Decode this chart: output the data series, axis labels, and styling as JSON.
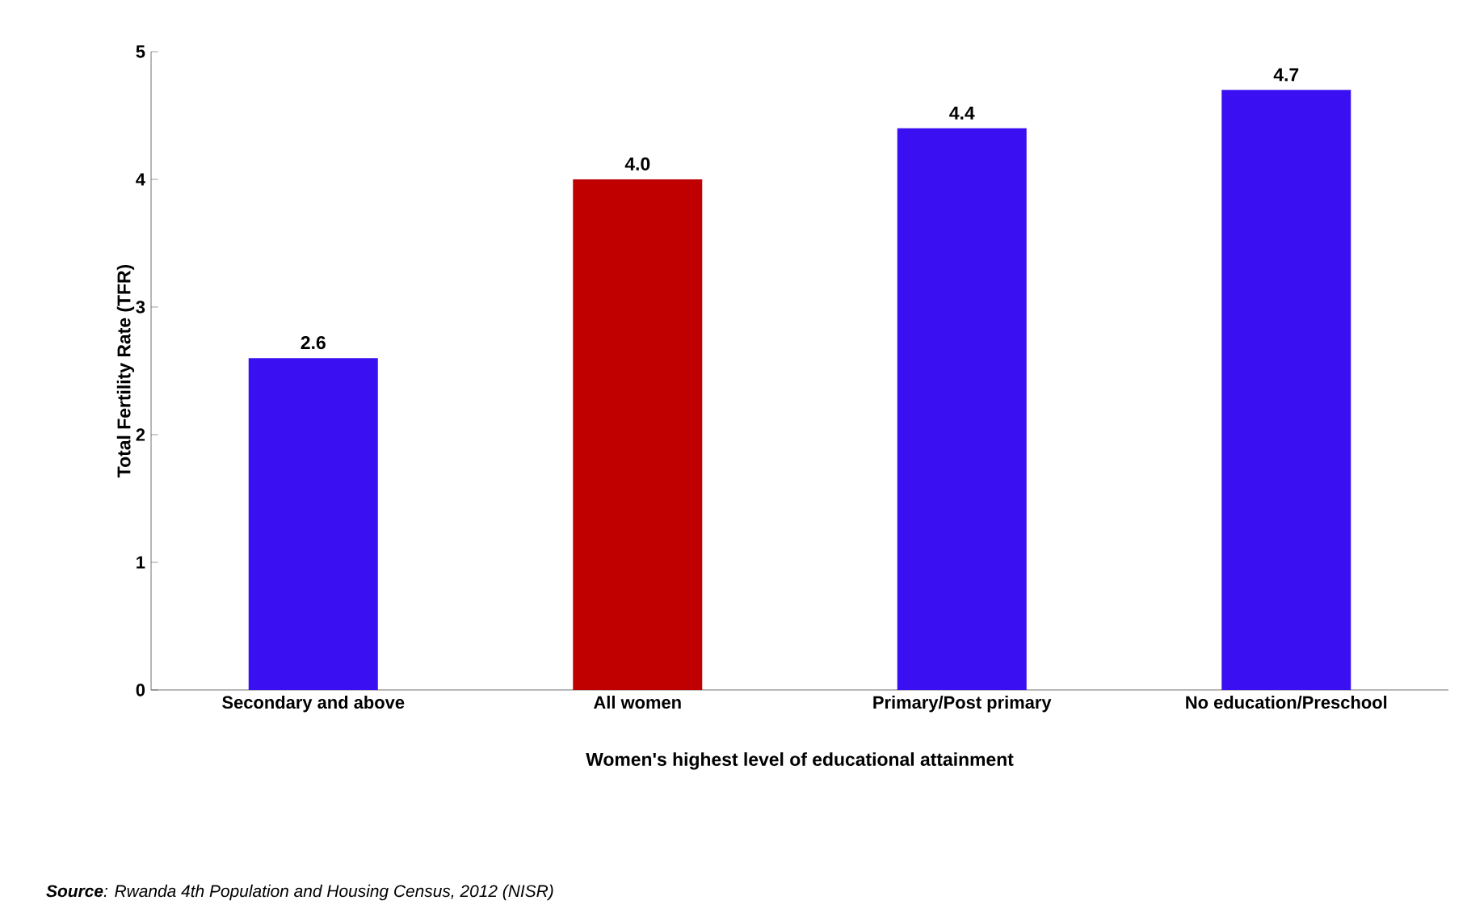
{
  "chart_data": {
    "type": "bar",
    "categories": [
      "Secondary and above",
      "All women",
      "Primary/Post primary",
      "No education/Preschool"
    ],
    "values": [
      2.6,
      4.0,
      4.4,
      4.7
    ],
    "value_labels": [
      "2.6",
      "4.0",
      "4.4",
      "4.7"
    ],
    "colors": [
      "#3a10f2",
      "#c00000",
      "#3a10f2",
      "#3a10f2"
    ],
    "xlabel": "Women's highest level of educational attainment",
    "ylabel": "Total Fertility Rate (TFR)",
    "ylim": [
      0,
      5
    ],
    "yticks": [
      0,
      1,
      2,
      3,
      4,
      5
    ],
    "grid": false,
    "annotations": [
      "**Source**: Rwanda 4th Population and Housing Census, 2012 (NISR)"
    ]
  }
}
